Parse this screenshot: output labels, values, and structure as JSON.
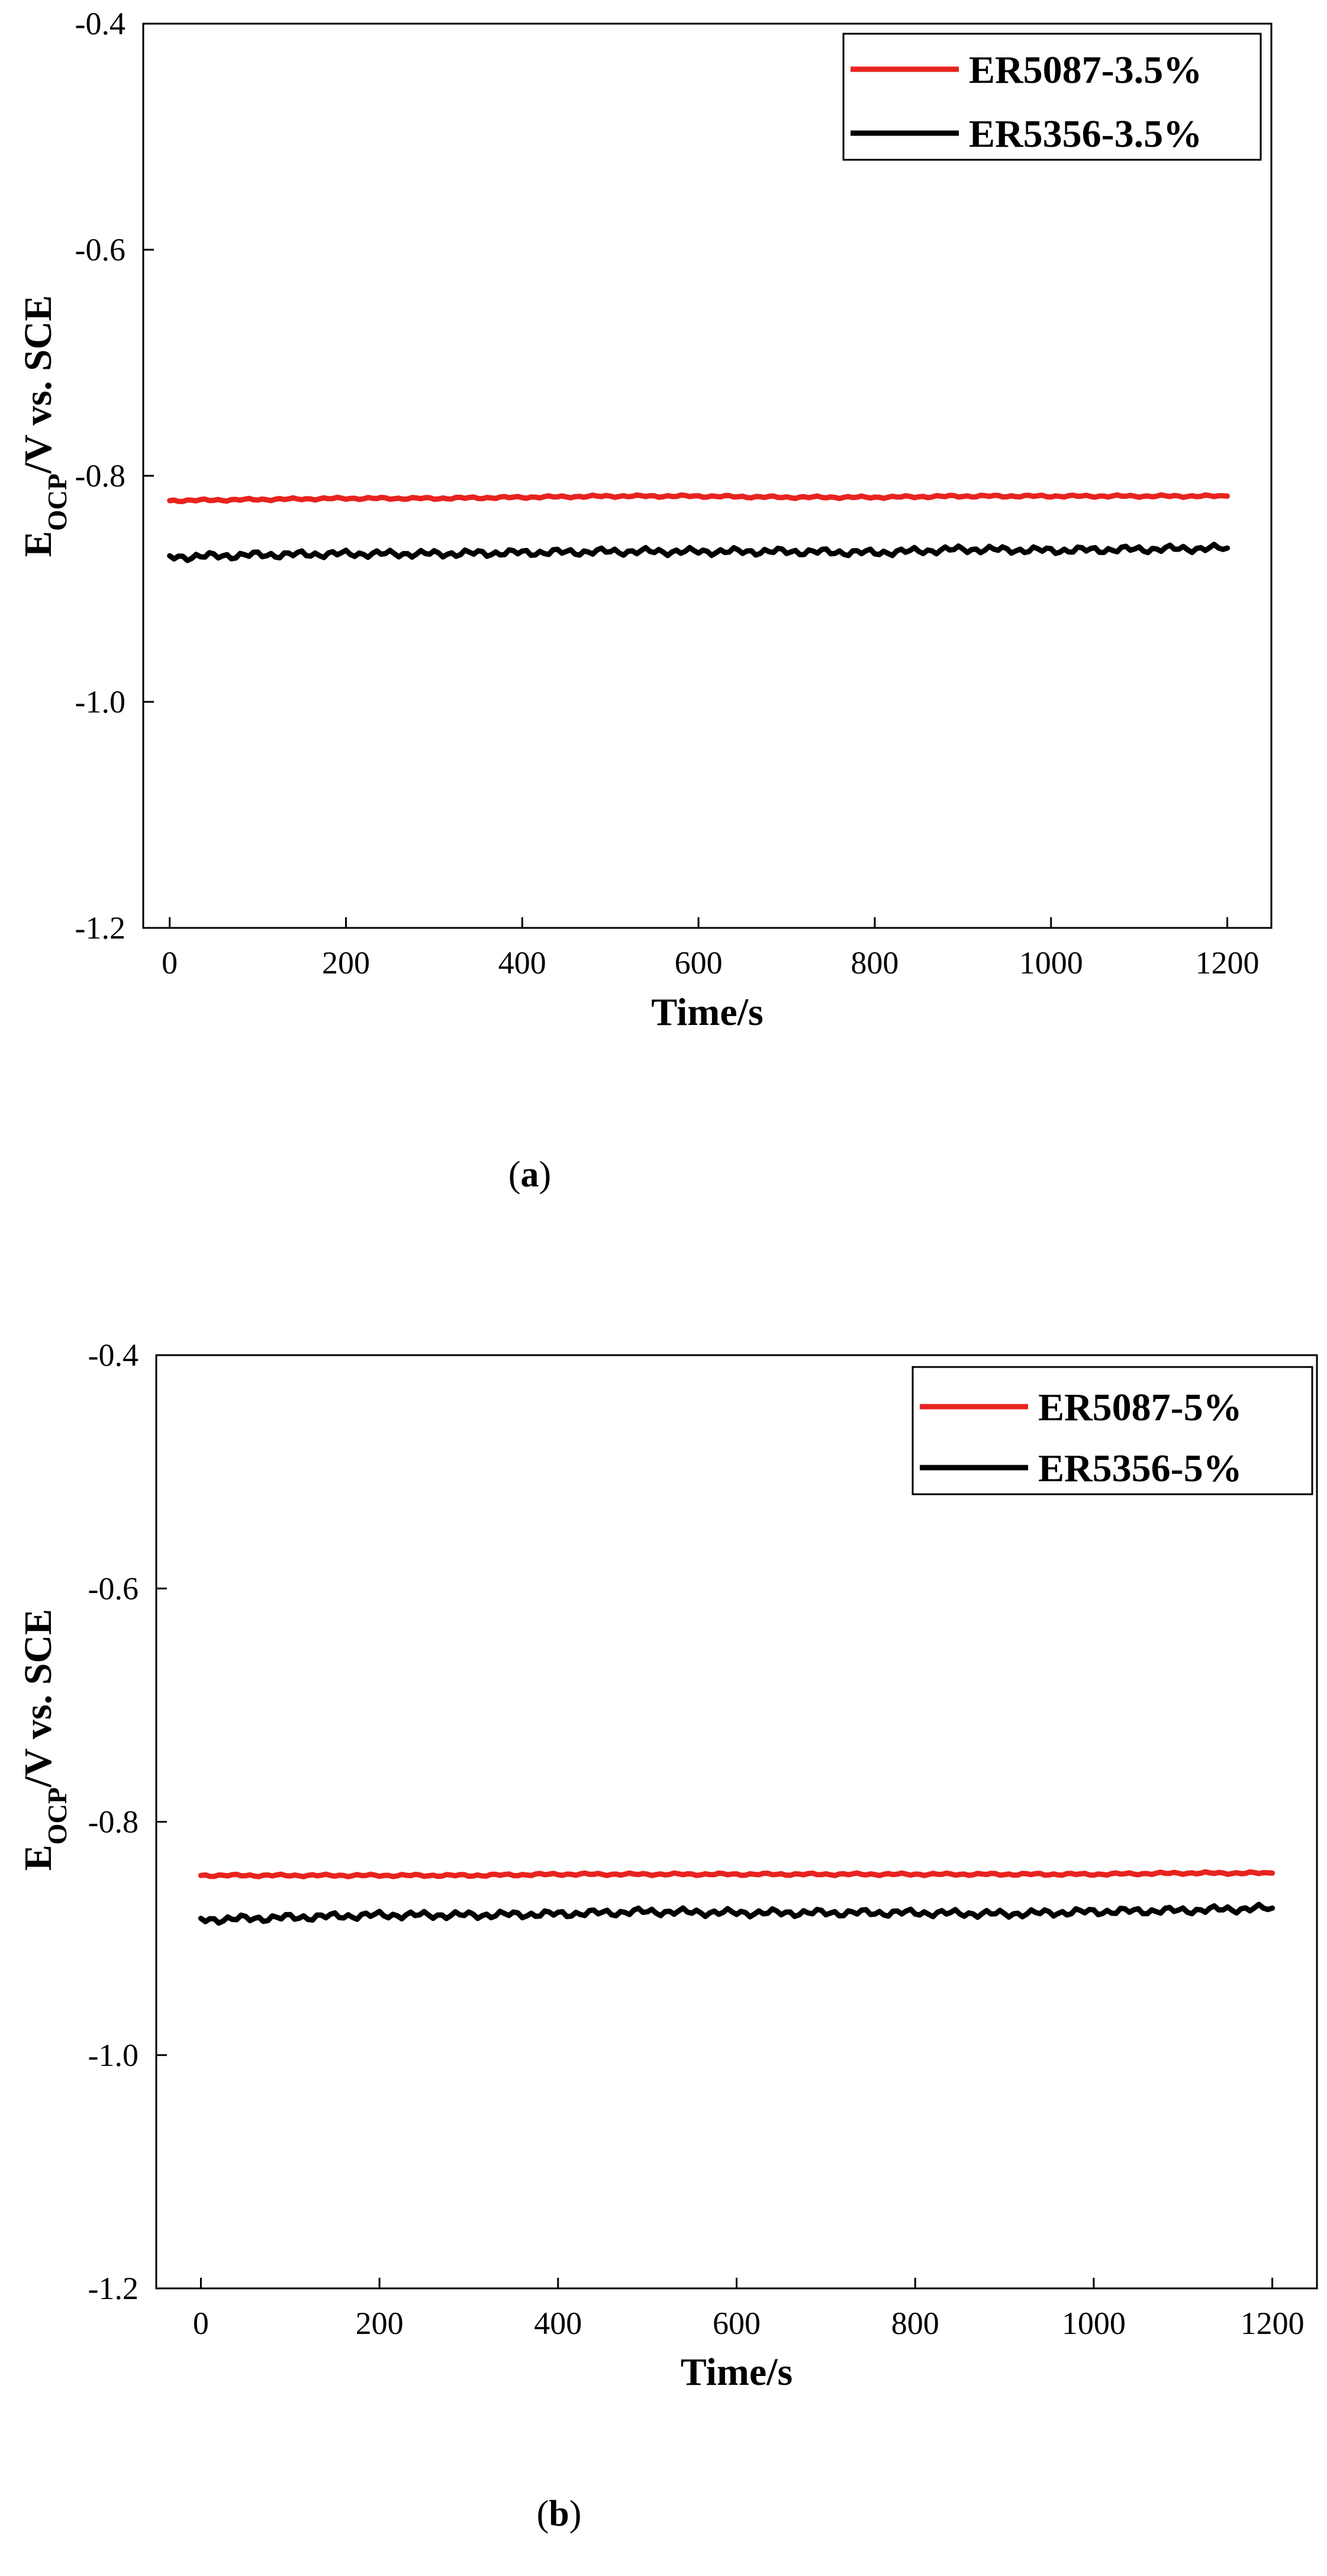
{
  "chart_data": [
    {
      "type": "line",
      "panel_label": "a",
      "xlabel": "Time/s",
      "ylabel_main": "E",
      "ylabel_subscript": "OCP",
      "ylabel_rest": "/V vs. SCE",
      "xlim": [
        -30,
        1250
      ],
      "ylim": [
        -1.2,
        -0.4
      ],
      "xticks": [
        0,
        200,
        400,
        600,
        800,
        1000,
        1200
      ],
      "xtick_labels": [
        "0",
        "200",
        "400",
        "600",
        "800",
        "1000",
        "1200"
      ],
      "yticks": [
        -1.2,
        -1.0,
        -0.8,
        -0.6,
        -0.4
      ],
      "ytick_labels": [
        "-1.2",
        "-1.0",
        "-0.8",
        "-0.6",
        "-0.4"
      ],
      "legend_position": "top-right",
      "series": [
        {
          "name": "ER5087-3.5%",
          "color": "#e8231f",
          "x": [
            0,
            100,
            200,
            300,
            400,
            500,
            600,
            700,
            800,
            900,
            1000,
            1100,
            1200
          ],
          "y": [
            -0.822,
            -0.821,
            -0.82,
            -0.82,
            -0.819,
            -0.818,
            -0.818,
            -0.819,
            -0.819,
            -0.818,
            -0.818,
            -0.818,
            -0.818
          ]
        },
        {
          "name": "ER5356-3.5%",
          "color": "#000000",
          "x": [
            0,
            100,
            200,
            300,
            400,
            500,
            600,
            700,
            800,
            900,
            1000,
            1100,
            1200
          ],
          "y": [
            -0.872,
            -0.87,
            -0.869,
            -0.869,
            -0.868,
            -0.867,
            -0.867,
            -0.867,
            -0.868,
            -0.865,
            -0.866,
            -0.865,
            -0.864
          ]
        }
      ]
    },
    {
      "type": "line",
      "panel_label": "b",
      "xlabel": "Time/s",
      "ylabel_main": "E",
      "ylabel_subscript": "OCP",
      "ylabel_rest": "/V vs. SCE",
      "xlim": [
        -50,
        1250
      ],
      "ylim": [
        -1.2,
        -0.4
      ],
      "xticks": [
        0,
        200,
        400,
        600,
        800,
        1000,
        1200
      ],
      "xtick_labels": [
        "0",
        "200",
        "400",
        "600",
        "800",
        "1000",
        "1200"
      ],
      "yticks": [
        -1.2,
        -1.0,
        -0.8,
        -0.6,
        -0.4
      ],
      "ytick_labels": [
        "-1.2",
        "-1.0",
        "-0.8",
        "-0.6",
        "-0.4"
      ],
      "legend_position": "top-right",
      "series": [
        {
          "name": "ER5087-5%",
          "color": "#e8231f",
          "x": [
            0,
            100,
            200,
            300,
            400,
            500,
            600,
            700,
            800,
            900,
            1000,
            1100,
            1200
          ],
          "y": [
            -0.846,
            -0.846,
            -0.846,
            -0.846,
            -0.845,
            -0.845,
            -0.845,
            -0.845,
            -0.845,
            -0.845,
            -0.845,
            -0.844,
            -0.844
          ]
        },
        {
          "name": "ER5356-5%",
          "color": "#000000",
          "x": [
            0,
            100,
            200,
            300,
            400,
            500,
            600,
            700,
            800,
            900,
            1000,
            1100,
            1200
          ],
          "y": [
            -0.884,
            -0.882,
            -0.88,
            -0.88,
            -0.879,
            -0.877,
            -0.878,
            -0.878,
            -0.878,
            -0.879,
            -0.877,
            -0.876,
            -0.874
          ]
        }
      ]
    }
  ]
}
